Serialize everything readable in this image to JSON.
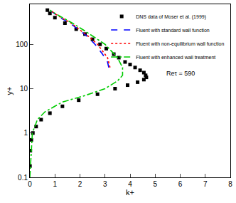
{
  "chart_data": {
    "type": "line",
    "x_label": "k+",
    "y_label": "y+",
    "annotation": {
      "text": "Reτ = 590",
      "x": 6.0,
      "y": 22
    },
    "log": "y",
    "grid": false,
    "legend": "top-right",
    "xlim": [
      0,
      8
    ],
    "xticks": [
      0,
      1,
      2,
      3,
      4,
      5,
      6,
      7,
      8
    ],
    "ylim": [
      0.1,
      800
    ],
    "yticks": [
      0.1,
      1,
      10,
      100
    ],
    "series": [
      {
        "name": "DNS data of Moser et al. (1999)",
        "type": "scatter",
        "marker": "square",
        "color": "#000000",
        "x": [
          0.005,
          0.02,
          0.06,
          0.12,
          0.25,
          0.45,
          0.8,
          1.3,
          1.95,
          2.7,
          3.4,
          3.9,
          4.3,
          4.55,
          4.65,
          4.62,
          4.55,
          4.4,
          4.2,
          4.0,
          3.8,
          3.55,
          3.35,
          3.05,
          2.8,
          2.5,
          2.2,
          1.85,
          1.4,
          1.0,
          0.8,
          0.7
        ],
        "values": [
          0.18,
          0.4,
          0.7,
          1.0,
          1.4,
          2.0,
          2.8,
          4.0,
          5.5,
          7.5,
          10,
          12,
          14,
          16,
          18,
          20,
          23,
          26,
          30,
          35,
          40,
          50,
          60,
          80,
          100,
          130,
          170,
          220,
          300,
          400,
          500,
          590
        ]
      },
      {
        "name": "Fluent with standard wall function",
        "type": "line",
        "line_style": "dash",
        "color": "#0000ff",
        "x": [
          3.15,
          3.1,
          2.9,
          2.6,
          2.3,
          2.0,
          1.6,
          1.2,
          0.95,
          0.8
        ],
        "values": [
          30,
          40,
          60,
          100,
          150,
          200,
          300,
          400,
          500,
          590
        ]
      },
      {
        "name": "Fluent with non-equilibrium wall function",
        "type": "line",
        "line_style": "dot",
        "color": "#ff0000",
        "x": [
          3.2,
          3.1,
          2.7,
          2.35,
          2.05,
          1.65,
          1.25,
          0.98,
          0.82
        ],
        "values": [
          30,
          50,
          100,
          150,
          200,
          300,
          400,
          500,
          590
        ]
      },
      {
        "name": "Fluent with enhanced wall treatment",
        "type": "line",
        "line_style": "dashdot",
        "color": "#00cc00",
        "x": [
          0.0,
          0.1,
          0.3,
          0.6,
          1.3,
          2.2,
          3.0,
          3.5,
          3.7,
          3.7,
          3.5,
          3.0,
          2.2,
          1.7,
          1.0,
          0.8
        ],
        "values": [
          0.1,
          1,
          2,
          3,
          5,
          7,
          10,
          15,
          20,
          30,
          50,
          100,
          200,
          300,
          500,
          590
        ]
      }
    ]
  }
}
